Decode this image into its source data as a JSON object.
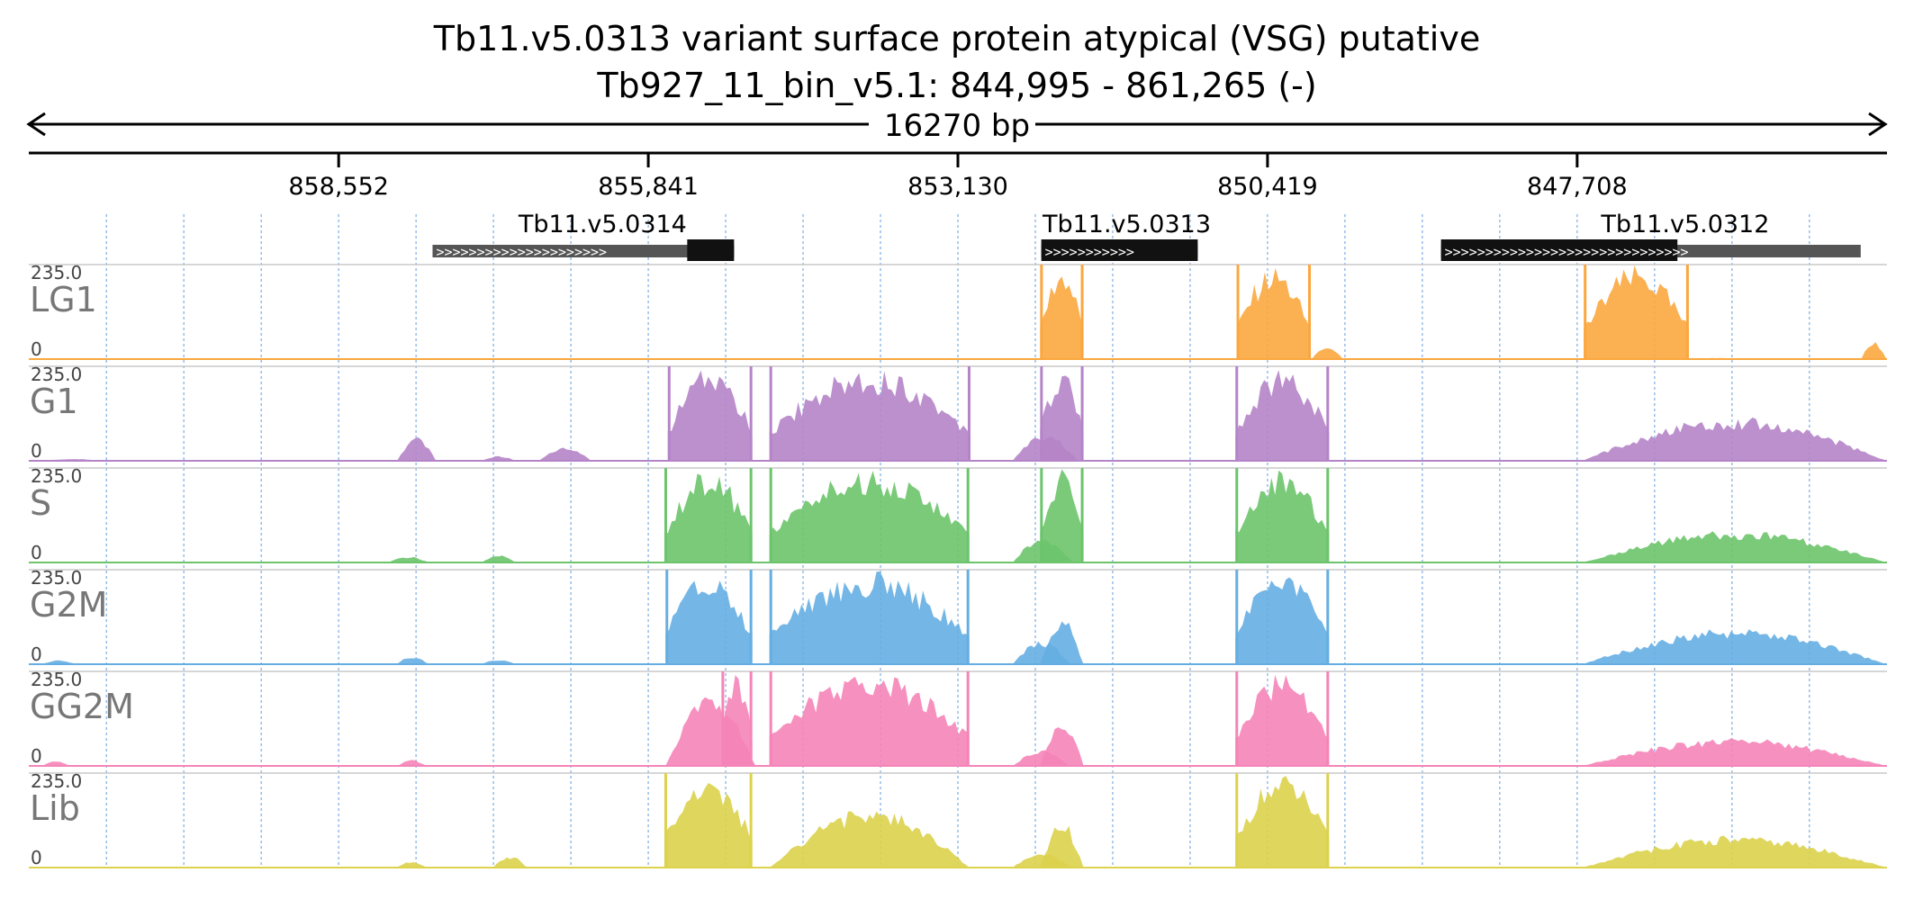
{
  "header": {
    "title": "Tb11.v5.0313  variant surface protein  atypical (VSG)  putative",
    "locus": "Tb927_11_bin_v5.1: 844,995 - 861,265 (-)",
    "span_label": "16270 bp"
  },
  "chart_data": {
    "type": "area",
    "region": {
      "chromosome": "Tb927_11_bin_v5.1",
      "start": 844995,
      "end": 861265,
      "strand": "-"
    },
    "ruler_ticks": [
      "858,552",
      "855,841",
      "853,130",
      "850,419",
      "847,708"
    ],
    "ruler_tick_values": [
      858552,
      855841,
      853130,
      850419,
      847708
    ],
    "genes": [
      {
        "name": "Tb11.v5.0314",
        "start": 855090,
        "end": 857730,
        "cds_start": 855090,
        "cds_end": 855500
      },
      {
        "name": "Tb11.v5.0313",
        "start": 851030,
        "end": 852400,
        "cds_start": 851030,
        "cds_end": 852400
      },
      {
        "name": "Tb11.v5.0312",
        "start": 845225,
        "end": 848900,
        "cds_start": 846830,
        "cds_end": 848900
      }
    ],
    "data_range": [
      0,
      235.0
    ],
    "tracks": [
      {
        "name": "LG1",
        "color": "#fba73f",
        "max_label": "235.0",
        "min_label": "0",
        "peaks": [
          {
            "start": 857720,
            "end": 857600,
            "height": 3
          },
          {
            "start": 856040,
            "end": 855920,
            "height": 2
          },
          {
            "start": 852410,
            "end": 852030,
            "height": 235
          },
          {
            "start": 850690,
            "end": 850040,
            "height": 235
          },
          {
            "start": 850030,
            "end": 849760,
            "height": 35
          },
          {
            "start": 847650,
            "end": 846730,
            "height": 235
          },
          {
            "start": 846650,
            "end": 846310,
            "height": 3
          },
          {
            "start": 845220,
            "end": 845000,
            "height": 45
          }
        ]
      },
      {
        "name": "G1",
        "color": "#b584c8",
        "max_label": "235.0",
        "min_label": "0",
        "peaks": [
          {
            "start": 861150,
            "end": 860600,
            "height": 5
          },
          {
            "start": 858040,
            "end": 857700,
            "height": 60
          },
          {
            "start": 857300,
            "end": 857000,
            "height": 12
          },
          {
            "start": 856800,
            "end": 856340,
            "height": 35
          },
          {
            "start": 855670,
            "end": 854930,
            "height": 235
          },
          {
            "start": 854780,
            "end": 853020,
            "height": 235
          },
          {
            "start": 852650,
            "end": 852080,
            "height": 70
          },
          {
            "start": 852410,
            "end": 852030,
            "height": 235
          },
          {
            "start": 850700,
            "end": 849880,
            "height": 235
          },
          {
            "start": 847660,
            "end": 845000,
            "height": 110
          }
        ]
      },
      {
        "name": "S",
        "color": "#6cc46c",
        "max_label": "235.0",
        "min_label": "0",
        "peaks": [
          {
            "start": 858120,
            "end": 857760,
            "height": 15
          },
          {
            "start": 857300,
            "end": 857000,
            "height": 20
          },
          {
            "start": 855700,
            "end": 854930,
            "height": 235
          },
          {
            "start": 854780,
            "end": 853030,
            "height": 235
          },
          {
            "start": 852650,
            "end": 852120,
            "height": 65
          },
          {
            "start": 852410,
            "end": 852030,
            "height": 235
          },
          {
            "start": 850700,
            "end": 849880,
            "height": 235
          },
          {
            "start": 847660,
            "end": 845000,
            "height": 80
          }
        ]
      },
      {
        "name": "G2M",
        "color": "#65aee2",
        "max_label": "235.0",
        "min_label": "0",
        "peaks": [
          {
            "start": 861150,
            "end": 860850,
            "height": 10
          },
          {
            "start": 858050,
            "end": 857760,
            "height": 20
          },
          {
            "start": 857300,
            "end": 857000,
            "height": 12
          },
          {
            "start": 855690,
            "end": 854930,
            "height": 235
          },
          {
            "start": 854780,
            "end": 853030,
            "height": 235
          },
          {
            "start": 852650,
            "end": 852140,
            "height": 60
          },
          {
            "start": 852410,
            "end": 852030,
            "height": 120
          },
          {
            "start": 850700,
            "end": 849880,
            "height": 235
          },
          {
            "start": 847660,
            "end": 845000,
            "height": 90
          }
        ]
      },
      {
        "name": "GG2M",
        "color": "#f584b8",
        "max_label": "235.0",
        "min_label": "0",
        "peaks": [
          {
            "start": 861150,
            "end": 860900,
            "height": 12
          },
          {
            "start": 858040,
            "end": 857780,
            "height": 15
          },
          {
            "start": 855200,
            "end": 854930,
            "height": 235
          },
          {
            "start": 855690,
            "end": 854900,
            "height": 180
          },
          {
            "start": 854780,
            "end": 853030,
            "height": 235
          },
          {
            "start": 852650,
            "end": 852150,
            "height": 40
          },
          {
            "start": 852410,
            "end": 852030,
            "height": 120
          },
          {
            "start": 850700,
            "end": 849880,
            "height": 235
          },
          {
            "start": 847660,
            "end": 845000,
            "height": 70
          }
        ]
      },
      {
        "name": "Lib",
        "color": "#dcd24c",
        "max_label": "235.0",
        "min_label": "0",
        "peaks": [
          {
            "start": 858050,
            "end": 857780,
            "height": 15
          },
          {
            "start": 857200,
            "end": 856900,
            "height": 30
          },
          {
            "start": 855700,
            "end": 854930,
            "height": 235
          },
          {
            "start": 854780,
            "end": 853030,
            "height": 150
          },
          {
            "start": 852650,
            "end": 852140,
            "height": 40
          },
          {
            "start": 852410,
            "end": 852030,
            "height": 120
          },
          {
            "start": 850700,
            "end": 849880,
            "height": 235
          },
          {
            "start": 847660,
            "end": 845000,
            "height": 80
          }
        ]
      }
    ]
  }
}
